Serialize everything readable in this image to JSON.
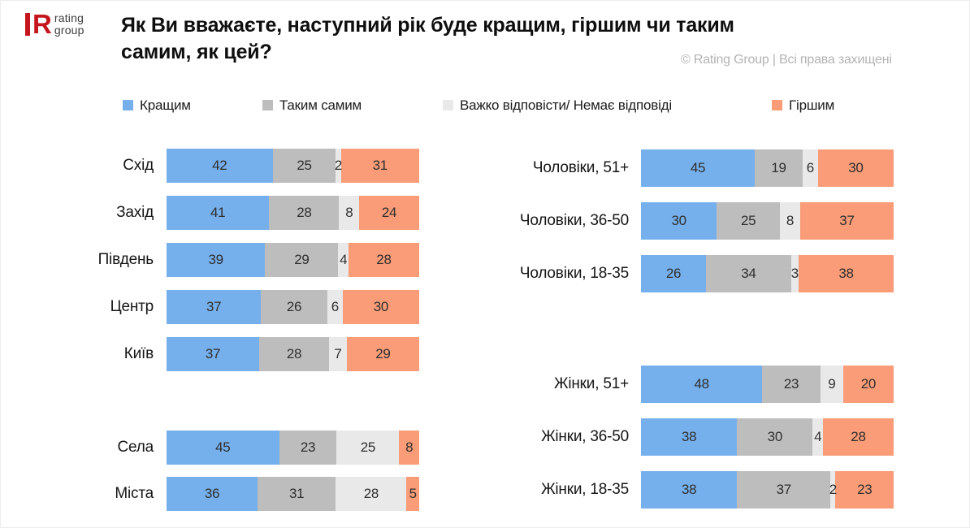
{
  "logo": {
    "letter": "R",
    "line1": "rating",
    "line2": "group",
    "brand_red": "#c4161c"
  },
  "header": {
    "title_line1": "Як Ви вважаєте, наступний рік буде кращим, гіршим чи таким",
    "title_line2": "самим, як цей?",
    "copyright": "© Rating Group | Всі права захищені"
  },
  "chart_data": {
    "type": "bar",
    "stacked": true,
    "orientation": "horizontal",
    "unit": "percent",
    "legend_position": "top",
    "xlim": [
      0,
      100
    ],
    "series": [
      "Кращим",
      "Таким самим",
      "Важко відповісти/ Немає відповіді",
      "Гіршим"
    ],
    "series_colors": [
      "#75B0EC",
      "#BDBDBD",
      "#E9E9E9",
      "#F99C77"
    ],
    "groups": [
      {
        "id": "regions",
        "rows": [
          {
            "label": "Схід",
            "values": [
              42,
              25,
              2,
              31
            ]
          },
          {
            "label": "Захід",
            "values": [
              41,
              28,
              8,
              24
            ]
          },
          {
            "label": "Південь",
            "values": [
              39,
              29,
              4,
              28
            ]
          },
          {
            "label": "Центр",
            "values": [
              37,
              26,
              6,
              30
            ]
          },
          {
            "label": "Київ",
            "values": [
              37,
              28,
              7,
              29
            ]
          }
        ]
      },
      {
        "id": "settlement",
        "rows": [
          {
            "label": "Села",
            "values": [
              45,
              23,
              25,
              8
            ]
          },
          {
            "label": "Міста",
            "values": [
              36,
              31,
              28,
              5
            ]
          }
        ]
      },
      {
        "id": "men",
        "rows": [
          {
            "label": "Чоловіки, 51+",
            "values": [
              45,
              19,
              6,
              30
            ]
          },
          {
            "label": "Чоловіки, 36-50",
            "values": [
              30,
              25,
              8,
              37
            ]
          },
          {
            "label": "Чоловіки, 18-35",
            "values": [
              26,
              34,
              3,
              38
            ]
          }
        ]
      },
      {
        "id": "women",
        "rows": [
          {
            "label": "Жінки, 51+",
            "values": [
              48,
              23,
              9,
              20
            ]
          },
          {
            "label": "Жінки, 36-50",
            "values": [
              38,
              30,
              4,
              28
            ]
          },
          {
            "label": "Жінки, 18-35",
            "values": [
              38,
              37,
              2,
              23
            ]
          }
        ]
      }
    ]
  }
}
